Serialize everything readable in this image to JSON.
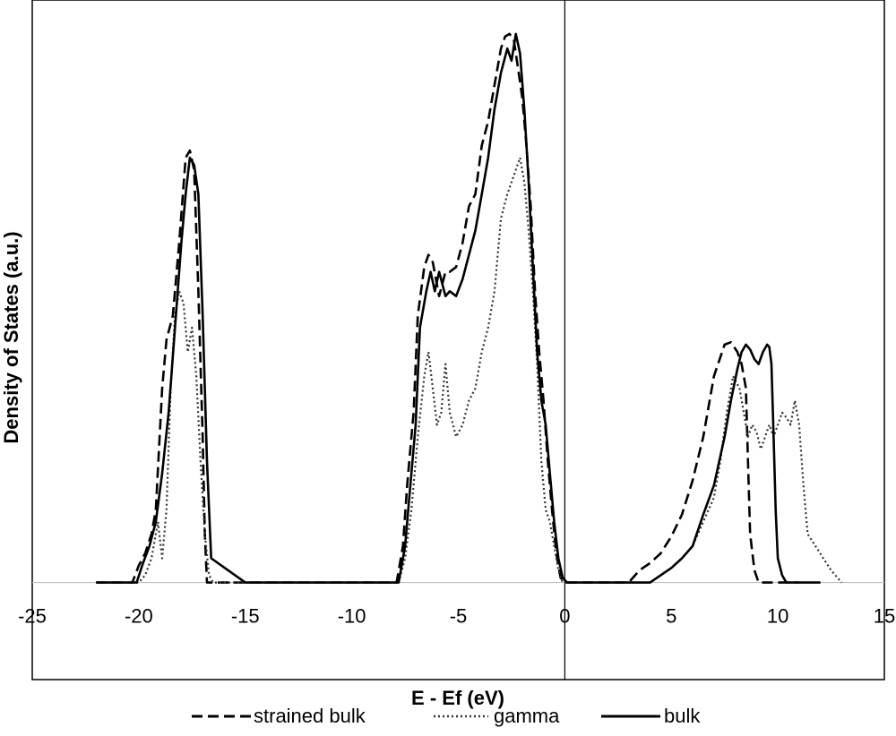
{
  "chart_data": {
    "type": "line",
    "title": "",
    "xlabel": "E - Ef (eV)",
    "ylabel": "Density of States (a.u.)",
    "xlim": [
      -25,
      15
    ],
    "ylim": [
      -4,
      24
    ],
    "xticks": [
      -25,
      -20,
      -15,
      -10,
      -5,
      0,
      5,
      10,
      15
    ],
    "xtick_labels": [
      "-25",
      "-20",
      "-15",
      "-10",
      "-5",
      "0",
      "5",
      "10",
      "15"
    ],
    "grid": false,
    "legend": "bottom",
    "series": [
      {
        "name": "strained bulk",
        "style": "dashed",
        "color": "#000000",
        "x": [
          -22,
          -20.3,
          -20.0,
          -19.7,
          -19.4,
          -19.2,
          -18.9,
          -18.7,
          -18.4,
          -18.1,
          -17.8,
          -17.6,
          -17.4,
          -17.2,
          -17.0,
          -16.9,
          -16.8,
          -15,
          -10,
          -7.9,
          -7.6,
          -7.4,
          -7.1,
          -6.9,
          -6.6,
          -6.4,
          -6.2,
          -5.9,
          -5.6,
          -5.4,
          -5.1,
          -4.8,
          -4.5,
          -4.2,
          -3.9,
          -3.6,
          -3.3,
          -3.0,
          -2.8,
          -2.6,
          -2.4,
          -2.2,
          -2.0,
          -1.8,
          -1.6,
          -1.4,
          -1.2,
          -1.0,
          -0.8,
          -0.6,
          -0.4,
          -0.2,
          0.0,
          0.2,
          2,
          3.0,
          3.5,
          4.0,
          4.5,
          5.0,
          5.5,
          6.0,
          6.5,
          7.0,
          7.5,
          7.8,
          8.1,
          8.3,
          8.5,
          8.6,
          8.7,
          8.9,
          9.1,
          11
        ],
        "y": [
          0,
          0,
          0.7,
          1.2,
          2.0,
          3.0,
          8.0,
          10.0,
          11.0,
          14.0,
          17.5,
          17.8,
          17.0,
          12.0,
          6.0,
          2.0,
          0,
          0,
          0,
          0,
          1.5,
          4.0,
          7.0,
          11.0,
          13.0,
          13.5,
          13.2,
          11.8,
          12.8,
          12.8,
          13.0,
          14.0,
          15.5,
          16.0,
          18.0,
          19.0,
          20.5,
          22.0,
          22.5,
          22.6,
          22.4,
          21.2,
          20.0,
          18.0,
          15.5,
          12.0,
          9.5,
          7.5,
          5.0,
          3.0,
          1.2,
          0.2,
          0,
          0,
          0,
          0,
          0.5,
          0.8,
          1.2,
          1.9,
          2.8,
          4.2,
          6.0,
          8.5,
          9.8,
          9.9,
          9.5,
          9.0,
          8.0,
          5.0,
          2.0,
          0.5,
          0,
          0
        ]
      },
      {
        "name": "gamma",
        "style": "dotted",
        "color": "#333333",
        "x": [
          -22,
          -20.0,
          -19.7,
          -19.4,
          -19.1,
          -18.9,
          -18.7,
          -18.5,
          -18.3,
          -18.1,
          -17.9,
          -17.7,
          -17.5,
          -17.3,
          -17.1,
          -16.9,
          -16.7,
          -16.5,
          -15,
          -10,
          -7.8,
          -7.5,
          -7.2,
          -6.9,
          -6.6,
          -6.4,
          -6.2,
          -6.0,
          -5.8,
          -5.6,
          -5.4,
          -5.1,
          -4.8,
          -4.5,
          -4.2,
          -3.9,
          -3.6,
          -3.3,
          -3.0,
          -2.7,
          -2.5,
          -2.3,
          -2.1,
          -1.9,
          -1.7,
          -1.5,
          -1.3,
          -1.1,
          -0.9,
          -0.7,
          -0.5,
          -0.3,
          -0.1,
          0.2,
          2,
          4.0,
          4.5,
          5.0,
          5.5,
          6.0,
          6.5,
          7.0,
          7.3,
          7.6,
          7.9,
          8.2,
          8.4,
          8.6,
          8.8,
          9.0,
          9.2,
          9.4,
          9.6,
          9.8,
          10.0,
          10.2,
          10.4,
          10.6,
          10.8,
          11.0,
          11.2,
          11.4,
          12.5,
          13
        ],
        "y": [
          0,
          0,
          0.3,
          1.0,
          2.5,
          1.0,
          3.0,
          8.0,
          11.0,
          12.0,
          11.5,
          9.5,
          10.5,
          8.5,
          5.0,
          2.0,
          0.3,
          0,
          0,
          0,
          0,
          1.0,
          3.0,
          6.0,
          8.5,
          9.5,
          8.0,
          6.5,
          7.0,
          9.0,
          7.0,
          6.0,
          6.5,
          7.5,
          8.0,
          9.5,
          10.5,
          12.0,
          15.0,
          16.0,
          16.5,
          17.0,
          17.5,
          16.5,
          14.5,
          12.0,
          9.0,
          5.0,
          3.0,
          2.5,
          1.5,
          0.5,
          0,
          0,
          0,
          0,
          0.3,
          0.6,
          1.0,
          1.5,
          2.5,
          3.5,
          5.0,
          7.0,
          8.5,
          8.0,
          7.0,
          6.0,
          6.5,
          6.2,
          5.5,
          6.0,
          6.5,
          6.0,
          6.5,
          7.0,
          6.8,
          6.5,
          7.5,
          6.5,
          4.0,
          2.0,
          0.5,
          0
        ]
      },
      {
        "name": "bulk",
        "style": "solid",
        "color": "#000000",
        "x": [
          -22,
          -20.1,
          -19.8,
          -19.5,
          -19.2,
          -18.9,
          -18.6,
          -18.3,
          -18.0,
          -17.8,
          -17.6,
          -17.4,
          -17.2,
          -17.0,
          -16.8,
          -16.6,
          -15,
          -10,
          -7.8,
          -7.5,
          -7.3,
          -7.0,
          -6.8,
          -6.5,
          -6.3,
          -6.1,
          -5.9,
          -5.6,
          -5.4,
          -5.1,
          -4.8,
          -4.5,
          -4.2,
          -3.9,
          -3.6,
          -3.3,
          -3.0,
          -2.7,
          -2.5,
          -2.3,
          -2.1,
          -1.9,
          -1.7,
          -1.5,
          -1.3,
          -1.1,
          -0.9,
          -0.7,
          -0.5,
          -0.3,
          -0.1,
          0.1,
          2,
          4.0,
          4.5,
          5.0,
          5.5,
          6.0,
          6.5,
          7.0,
          7.5,
          7.8,
          8.1,
          8.3,
          8.5,
          8.7,
          8.9,
          9.1,
          9.3,
          9.5,
          9.6,
          9.7,
          9.8,
          9.9,
          10.0,
          10.2,
          10.4,
          12
        ],
        "y": [
          0,
          0,
          0.8,
          1.5,
          2.5,
          4.5,
          7.0,
          10.5,
          14.0,
          16.0,
          17.5,
          17.2,
          16.0,
          11.0,
          5.0,
          1.0,
          0,
          0,
          0,
          1.5,
          3.5,
          6.5,
          10.5,
          12.0,
          12.8,
          12.0,
          12.8,
          11.8,
          12.0,
          11.8,
          12.5,
          13.5,
          14.5,
          16.0,
          17.5,
          19.5,
          21.0,
          22.0,
          21.5,
          22.6,
          21.8,
          19.5,
          16.5,
          13.0,
          9.5,
          7.5,
          6.5,
          4.5,
          2.5,
          1.0,
          0.2,
          0,
          0,
          0,
          0.3,
          0.6,
          1.0,
          1.5,
          2.8,
          4.0,
          6.0,
          7.5,
          8.8,
          9.5,
          9.8,
          9.6,
          9.2,
          9.0,
          9.5,
          9.8,
          9.7,
          9.0,
          6.0,
          3.0,
          1.0,
          0.3,
          0,
          0
        ]
      }
    ]
  }
}
